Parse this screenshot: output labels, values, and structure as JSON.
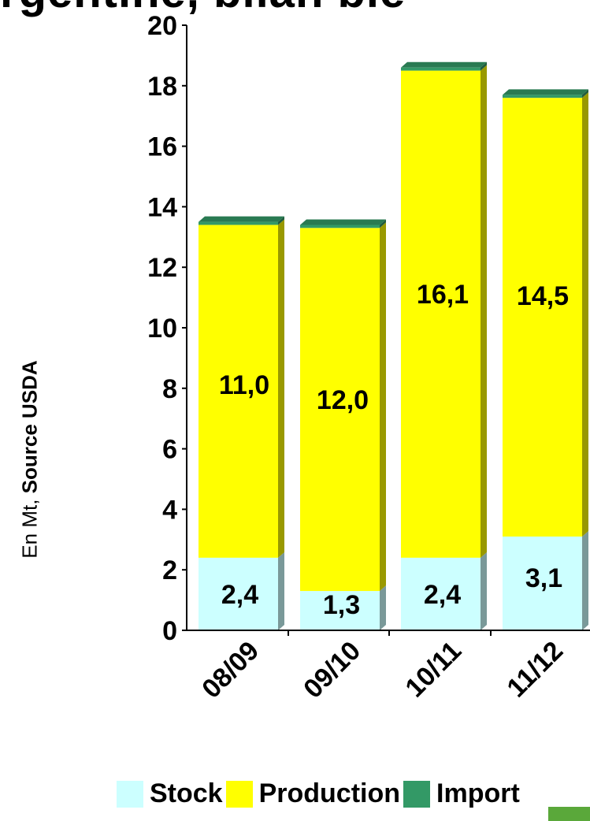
{
  "page": {
    "title": "rgentine, bilan blé"
  },
  "chart_data": {
    "type": "bar",
    "stacked": true,
    "categories": [
      "08/09",
      "09/10",
      "10/11",
      "11/12"
    ],
    "series": [
      {
        "name": "Stock",
        "color": "#ccffff",
        "values": [
          2.4,
          1.3,
          2.4,
          3.1
        ],
        "labels": [
          "2,4",
          "1,3",
          "2,4",
          "3,1"
        ]
      },
      {
        "name": "Production",
        "color": "#ffff00",
        "values": [
          11.0,
          12.0,
          16.1,
          14.5
        ],
        "labels": [
          "11,0",
          "12,0",
          "16,1",
          "14,5"
        ]
      },
      {
        "name": "Import",
        "color": "#339966",
        "values": [
          0.1,
          0.1,
          0.1,
          0.1
        ],
        "labels": [
          "",
          "",
          "",
          ""
        ]
      }
    ],
    "ylabel": {
      "unit": "En Mt, ",
      "source": "Source USDA"
    },
    "ylim": [
      0,
      20
    ],
    "yticks": [
      0,
      2,
      4,
      6,
      8,
      10,
      12,
      14,
      16,
      18,
      20
    ],
    "grid": false,
    "legend_position": "bottom",
    "bar_style": "3d"
  }
}
